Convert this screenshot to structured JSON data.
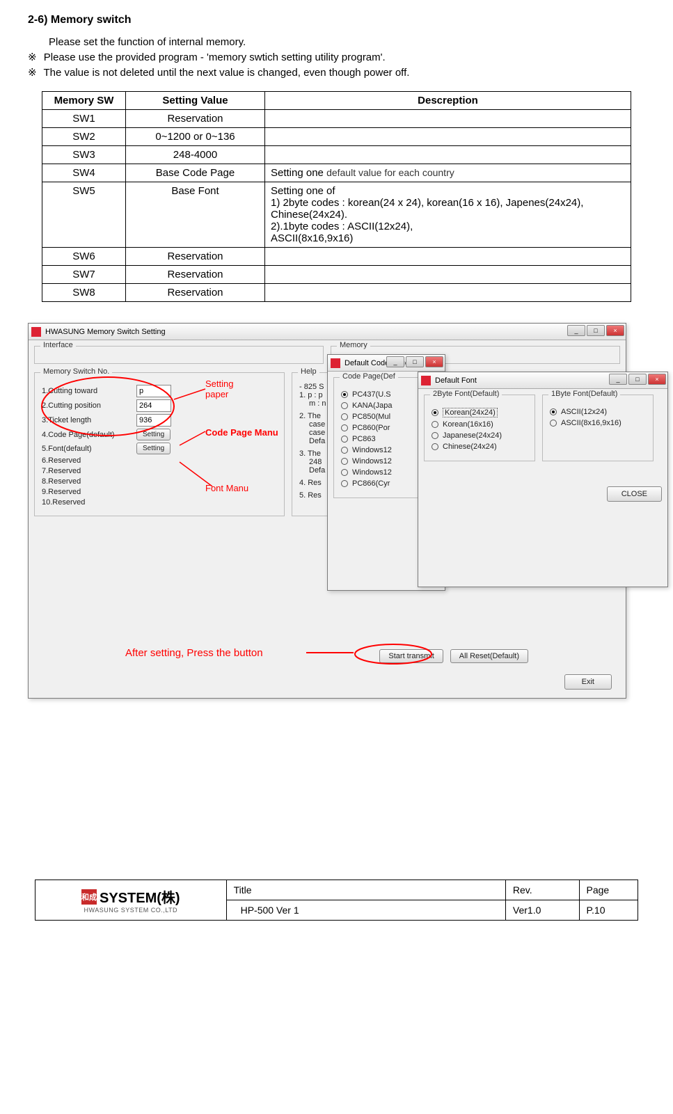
{
  "section_title": "2-6) Memory switch",
  "intro_line": "Please set the function of internal memory.",
  "bullet_symbol": "※",
  "bullet1": "Please use the provided program - 'memory swtich setting utility program'.",
  "bullet2": "The value is not deleted until the next value is changed, even though power off.",
  "table": {
    "headers": [
      "Memory SW",
      "Setting Value",
      "Descreption"
    ],
    "rows": [
      [
        "SW1",
        "Reservation",
        ""
      ],
      [
        "SW2",
        "0~1200 or 0~136",
        ""
      ],
      [
        "SW3",
        "248-4000",
        ""
      ],
      [
        "SW4",
        "Base Code Page",
        "Setting one default value for each country"
      ],
      [
        "SW5",
        "Base Font",
        "Setting one of\n1) 2byte codes : korean(24 x 24), korean(16 x 16), Japenes(24x24), Chinese(24x24).\n2).1byte codes :   ASCII(12x24),\n   ASCII(8x16,9x16)"
      ],
      [
        "SW6",
        "Reservation",
        ""
      ],
      [
        "SW7",
        "Reservation",
        ""
      ],
      [
        "SW8",
        "Reservation",
        ""
      ]
    ]
  },
  "annotations": {
    "setting_paper_l1": "Setting",
    "setting_paper_l2": "paper",
    "code_page_manu": "Code Page Manu",
    "font_manu": "Font Manu",
    "after_setting": "After setting, Press the button",
    "color": "#ff0000",
    "ellipse_stroke_width": 2
  },
  "main_window": {
    "title": "HWASUNG Memory Switch Setting",
    "group_interface": "Interface",
    "group_memory": "Memory",
    "group_msw": "Memory Switch No.",
    "group_help": "Help",
    "rows": {
      "r1_label": "1.Cutting toward",
      "r1_val": "p",
      "r2_label": "2.Cutting position",
      "r2_val": "264",
      "r3_label": "3.Ticket length",
      "r3_val": "936",
      "r4_label": "4.Code Page(default)",
      "r4_btn": "Setting",
      "r5_label": "5.Font(default)",
      "r5_btn": "Setting",
      "r6_label": "6.Reserved",
      "r7_label": "7.Reserved",
      "r8_label": "8.Reserved",
      "r9_label": "9.Reserved",
      "r10_label": "10.Reserved"
    },
    "help_lines": {
      "h1": "- 825 S",
      "h2": "1. p : p",
      "h2b": "m : n",
      "h3": "2. The",
      "h3b": "case",
      "h3c": "case",
      "h3d": "Defa",
      "h4": "3. The",
      "h4b": "248",
      "h4c": "Defa",
      "h5": "4. Res",
      "h6": "5. Res"
    },
    "btn_start": "Start transmit",
    "btn_reset": "All Reset(Default)",
    "btn_exit": "Exit"
  },
  "codepage_window": {
    "title": "Default Code Page",
    "group": "Code Page(Def",
    "opts": [
      "PC437(U.S",
      "KANA(Japa",
      "PC850(Mul",
      "PC860(Por",
      "PC863",
      "Windows12",
      "Windows12",
      "Windows12",
      "PC866(Cyr"
    ]
  },
  "font_window": {
    "title": "Default Font",
    "group2b": "2Byte Font(Default)",
    "opts2b": [
      "Korean(24x24)",
      "Korean(16x16)",
      "Japanese(24x24)",
      "Chinese(24x24)"
    ],
    "group1b": "1Byte Font(Default)",
    "opts1b": [
      "ASCII(12x24)",
      "ASCII(8x16,9x16)"
    ],
    "btn_close": "CLOSE"
  },
  "footer": {
    "logo_text": "SYSTEM(株)",
    "logo_sub": "HWASUNG SYSTEM CO.,LTD",
    "title_label": "Title",
    "title_value": "HP-500 Ver 1",
    "rev_label": "Rev.",
    "rev_value": "Ver1.0",
    "page_label": "Page",
    "page_value": "P.10"
  }
}
